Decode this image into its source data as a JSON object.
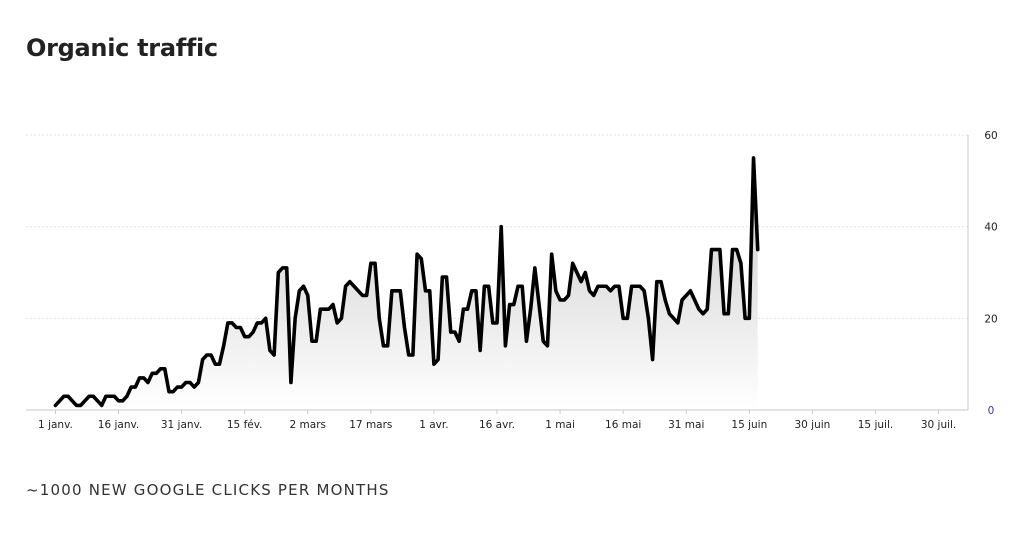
{
  "title": "Organic traffic",
  "footer_note": "~1000 NEW GOOGLE CLICKS PER MONTHS",
  "colors": {
    "line": "#000000",
    "fill_top": "#c7c7c7",
    "fill_bottom": "#ffffff",
    "grid": "#e2e2e2",
    "axis": "#c8c8c8",
    "zero_tick": "#4b2fa8"
  },
  "chart_data": {
    "type": "area",
    "y_axis_position": "right",
    "ylim": [
      0,
      60
    ],
    "y_ticks": [
      0,
      20,
      40,
      60
    ],
    "grid": true,
    "x_tick_labels": [
      "1 janv.",
      "16 janv.",
      "31 janv.",
      "15 fév.",
      "2 mars",
      "17 mars",
      "1 avr.",
      "16 avr.",
      "1 mai",
      "16 mai",
      "31 mai",
      "15 juin",
      "30 juin",
      "15 juil.",
      "30 juil."
    ],
    "x_tick_days": [
      0,
      15,
      30,
      45,
      60,
      75,
      90,
      105,
      120,
      135,
      150,
      165,
      180,
      195,
      210
    ],
    "x_range_days": [
      -7,
      217
    ],
    "series": [
      {
        "points": [
          [
            0,
            1
          ],
          [
            2,
            3
          ],
          [
            3,
            3
          ],
          [
            5,
            1
          ],
          [
            6,
            1
          ],
          [
            8,
            3
          ],
          [
            9,
            3
          ],
          [
            10,
            2
          ],
          [
            11,
            1
          ],
          [
            12,
            3
          ],
          [
            13,
            3
          ],
          [
            14,
            3
          ],
          [
            15,
            2
          ],
          [
            16,
            2
          ],
          [
            17,
            3
          ],
          [
            18,
            5
          ],
          [
            19,
            5
          ],
          [
            20,
            7
          ],
          [
            21,
            7
          ],
          [
            22,
            6
          ],
          [
            23,
            8
          ],
          [
            24,
            8
          ],
          [
            25,
            9
          ],
          [
            26,
            9
          ],
          [
            27,
            4
          ],
          [
            28,
            4
          ],
          [
            29,
            5
          ],
          [
            30,
            5
          ],
          [
            31,
            6
          ],
          [
            32,
            6
          ],
          [
            33,
            5
          ],
          [
            34,
            6
          ],
          [
            35,
            11
          ],
          [
            36,
            12
          ],
          [
            37,
            12
          ],
          [
            38,
            10
          ],
          [
            39,
            10
          ],
          [
            40,
            14
          ],
          [
            41,
            19
          ],
          [
            42,
            19
          ],
          [
            43,
            18
          ],
          [
            44,
            18
          ],
          [
            45,
            16
          ],
          [
            46,
            16
          ],
          [
            47,
            17
          ],
          [
            48,
            19
          ],
          [
            49,
            19
          ],
          [
            50,
            20
          ],
          [
            51,
            13
          ],
          [
            52,
            12
          ],
          [
            53,
            30
          ],
          [
            54,
            31
          ],
          [
            55,
            31
          ],
          [
            56,
            6
          ],
          [
            57,
            20
          ],
          [
            58,
            26
          ],
          [
            59,
            27
          ],
          [
            60,
            25
          ],
          [
            61,
            15
          ],
          [
            62,
            15
          ],
          [
            63,
            22
          ],
          [
            64,
            22
          ],
          [
            65,
            22
          ],
          [
            66,
            23
          ],
          [
            67,
            19
          ],
          [
            68,
            20
          ],
          [
            69,
            27
          ],
          [
            70,
            28
          ],
          [
            71,
            27
          ],
          [
            72,
            26
          ],
          [
            73,
            25
          ],
          [
            74,
            25
          ],
          [
            75,
            32
          ],
          [
            76,
            32
          ],
          [
            77,
            20
          ],
          [
            78,
            14
          ],
          [
            79,
            14
          ],
          [
            80,
            26
          ],
          [
            81,
            26
          ],
          [
            82,
            26
          ],
          [
            83,
            18
          ],
          [
            84,
            12
          ],
          [
            85,
            12
          ],
          [
            86,
            34
          ],
          [
            87,
            33
          ],
          [
            88,
            26
          ],
          [
            89,
            26
          ],
          [
            90,
            10
          ],
          [
            91,
            11
          ],
          [
            92,
            29
          ],
          [
            93,
            29
          ],
          [
            94,
            17
          ],
          [
            95,
            17
          ],
          [
            96,
            15
          ],
          [
            97,
            22
          ],
          [
            98,
            22
          ],
          [
            99,
            26
          ],
          [
            100,
            26
          ],
          [
            101,
            13
          ],
          [
            102,
            27
          ],
          [
            103,
            27
          ],
          [
            104,
            19
          ],
          [
            105,
            19
          ],
          [
            106,
            40
          ],
          [
            107,
            14
          ],
          [
            108,
            23
          ],
          [
            109,
            23
          ],
          [
            110,
            27
          ],
          [
            111,
            27
          ],
          [
            112,
            15
          ],
          [
            113,
            22
          ],
          [
            114,
            31
          ],
          [
            115,
            23
          ],
          [
            116,
            15
          ],
          [
            117,
            14
          ],
          [
            118,
            34
          ],
          [
            119,
            26
          ],
          [
            120,
            24
          ],
          [
            121,
            24
          ],
          [
            122,
            25
          ],
          [
            123,
            32
          ],
          [
            124,
            30
          ],
          [
            125,
            28
          ],
          [
            126,
            30
          ],
          [
            127,
            26
          ],
          [
            128,
            25
          ],
          [
            129,
            27
          ],
          [
            130,
            27
          ],
          [
            131,
            27
          ],
          [
            132,
            26
          ],
          [
            133,
            27
          ],
          [
            134,
            27
          ],
          [
            135,
            20
          ],
          [
            136,
            20
          ],
          [
            137,
            27
          ],
          [
            138,
            27
          ],
          [
            139,
            27
          ],
          [
            140,
            26
          ],
          [
            141,
            20
          ],
          [
            142,
            11
          ],
          [
            143,
            28
          ],
          [
            144,
            28
          ],
          [
            145,
            24
          ],
          [
            146,
            21
          ],
          [
            147,
            20
          ],
          [
            148,
            19
          ],
          [
            149,
            24
          ],
          [
            150,
            25
          ],
          [
            151,
            26
          ],
          [
            152,
            24
          ],
          [
            153,
            22
          ],
          [
            154,
            21
          ],
          [
            155,
            22
          ],
          [
            156,
            35
          ],
          [
            157,
            35
          ],
          [
            158,
            35
          ],
          [
            159,
            21
          ],
          [
            160,
            21
          ],
          [
            161,
            35
          ],
          [
            162,
            35
          ],
          [
            163,
            32
          ],
          [
            164,
            20
          ],
          [
            165,
            20
          ],
          [
            166,
            55
          ],
          [
            167,
            35
          ]
        ]
      }
    ]
  }
}
